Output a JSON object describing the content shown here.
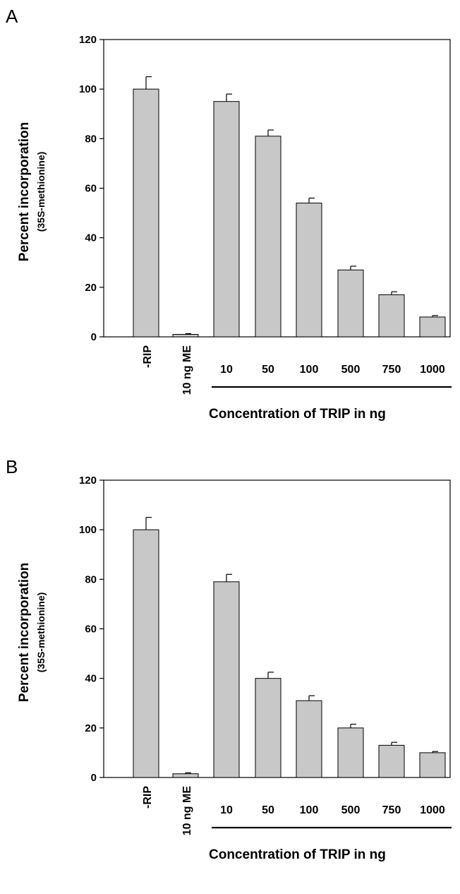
{
  "chart_data": [
    {
      "type": "bar",
      "panel_label": "A",
      "ylabel": "Percent incorporation",
      "ylabel_sub": "(35S-methionine)",
      "ylim": [
        0,
        120
      ],
      "yticks": [
        0,
        20,
        40,
        60,
        80,
        100,
        120
      ],
      "categories": [
        "-RIP",
        "10 ng ME",
        "10",
        "50",
        "100",
        "500",
        "750",
        "1000"
      ],
      "values": [
        100,
        1,
        95,
        81,
        54,
        27,
        17,
        8
      ],
      "errors": [
        5,
        0.3,
        3,
        2.5,
        2,
        1.5,
        1.2,
        0.6
      ],
      "group_label": "Concentration of TRIP in ng",
      "grid": false,
      "bar_color": "#c8c8c8"
    },
    {
      "type": "bar",
      "panel_label": "B",
      "ylabel": "Percent incorporation",
      "ylabel_sub": "(35S-methionine)",
      "ylim": [
        0,
        120
      ],
      "yticks": [
        0,
        20,
        40,
        60,
        80,
        100,
        120
      ],
      "categories": [
        "-RIP",
        "10 ng ME",
        "10",
        "50",
        "100",
        "500",
        "750",
        "1000"
      ],
      "values": [
        100,
        1.5,
        79,
        40,
        31,
        20,
        13,
        10
      ],
      "errors": [
        5,
        0.4,
        3,
        2.5,
        2,
        1.5,
        1.2,
        0.5
      ],
      "group_label": "Concentration of TRIP in ng",
      "grid": false,
      "bar_color": "#c8c8c8"
    }
  ]
}
